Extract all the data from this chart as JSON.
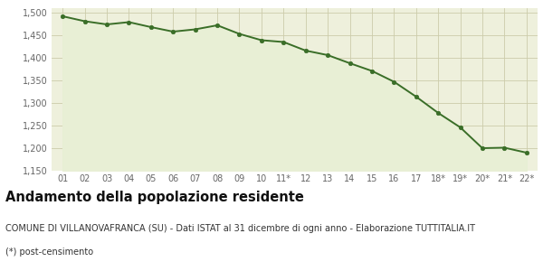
{
  "x_labels": [
    "01",
    "02",
    "03",
    "04",
    "05",
    "06",
    "07",
    "08",
    "09",
    "10",
    "11*",
    "12",
    "13",
    "14",
    "15",
    "16",
    "17",
    "18*",
    "19*",
    "20*",
    "21*",
    "22*"
  ],
  "y_values": [
    1492,
    1481,
    1474,
    1479,
    1468,
    1458,
    1463,
    1472,
    1453,
    1439,
    1435,
    1416,
    1406,
    1388,
    1371,
    1347,
    1314,
    1278,
    1246,
    1200,
    1201,
    1190
  ],
  "line_color": "#3a6e28",
  "fill_color": "#e8efd5",
  "marker_color": "#3a6e28",
  "bg_color": "#eef0dc",
  "grid_color": "#ccccaa",
  "ylim": [
    1150,
    1510
  ],
  "yticks": [
    1150,
    1200,
    1250,
    1300,
    1350,
    1400,
    1450,
    1500
  ],
  "title": "Andamento della popolazione residente",
  "subtitle": "COMUNE DI VILLANOVAFRANCA (SU) - Dati ISTAT al 31 dicembre di ogni anno - Elaborazione TUTTITALIA.IT",
  "footnote": "(*) post-censimento",
  "title_fontsize": 10.5,
  "subtitle_fontsize": 7.0,
  "footnote_fontsize": 7.0,
  "tick_fontsize": 7.0,
  "ytick_fontsize": 7.0
}
